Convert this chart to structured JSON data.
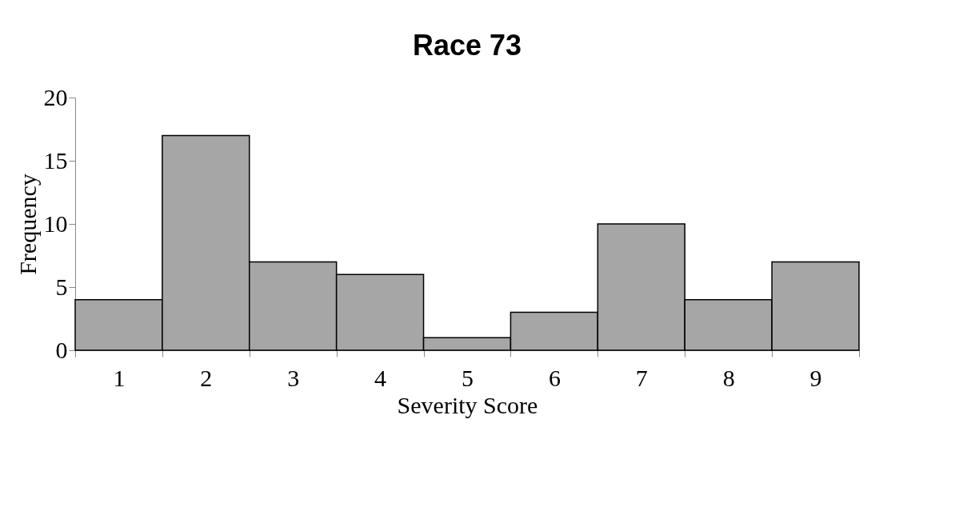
{
  "chart_data": {
    "type": "bar",
    "title": "Race 73",
    "xlabel": "Severity Score",
    "ylabel": "Frequency",
    "categories": [
      "1",
      "2",
      "3",
      "4",
      "5",
      "6",
      "7",
      "8",
      "9"
    ],
    "values": [
      4,
      17,
      7,
      6,
      1,
      3,
      10,
      4,
      7
    ],
    "color": "#a6a6a6",
    "ylim": [
      0,
      20
    ],
    "yticks": [
      0,
      5,
      10,
      15,
      20
    ],
    "grid": false
  }
}
